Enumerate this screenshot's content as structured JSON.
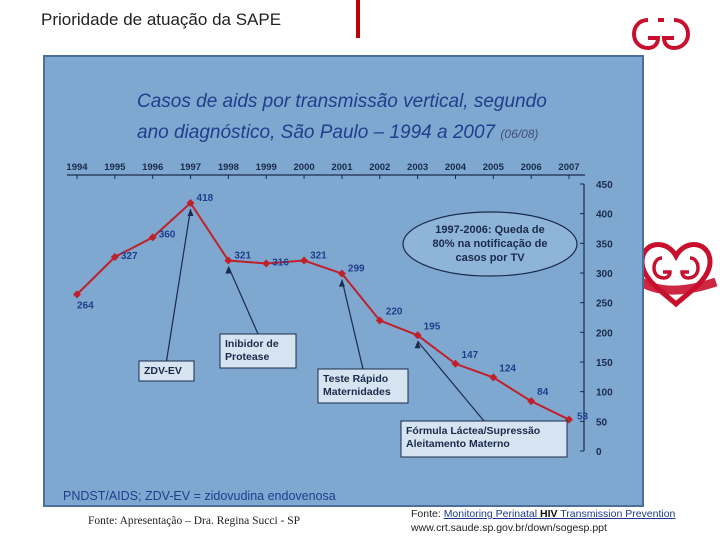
{
  "slide_title": "Prioridade de atuação da SAPE",
  "chart_data": {
    "type": "line",
    "title_line1": "Casos de aids por transmissão vertical, segundo",
    "title_line2": "ano diagnóstico, São Paulo – 1994 a 2007",
    "title_note": "(06/08)",
    "x": [
      "1994",
      "1995",
      "1996",
      "1997",
      "1998",
      "1999",
      "2000",
      "2001",
      "2002",
      "2003",
      "2004",
      "2005",
      "2006",
      "2007"
    ],
    "values": [
      264,
      327,
      360,
      418,
      321,
      316,
      321,
      299,
      220,
      195,
      147,
      124,
      84,
      53
    ],
    "value_labels": [
      "264",
      "327",
      "360",
      "418",
      "321",
      "316",
      "321",
      "299",
      "220",
      "195",
      "147",
      "124",
      "84",
      "53"
    ],
    "ylim": [
      0,
      450
    ],
    "yticks": [
      0,
      50,
      100,
      150,
      200,
      250,
      300,
      350,
      400,
      450
    ],
    "ytick_labels": [
      "0",
      "50",
      "100",
      "150",
      "200",
      "250",
      "300",
      "350",
      "400",
      "450"
    ],
    "y_axis_side": "right",
    "x_axis_side": "top",
    "line_color": "#c0202a",
    "annotations": [
      {
        "text_lines": [
          "ZDV-EV"
        ],
        "points_to": "1997"
      },
      {
        "text_lines": [
          "Inibidor de",
          "Protease"
        ],
        "points_to": "1998"
      },
      {
        "text_lines": [
          "Teste Rápido",
          "Maternidades"
        ],
        "points_to": "2001"
      },
      {
        "text_lines": [
          "Fórmula Láctea/Supressão",
          "Aleitamento Materno"
        ],
        "points_to": "2003"
      }
    ],
    "callout_lines": [
      "1997-2006: Queda de",
      "80% na notificação de",
      "casos por TV"
    ],
    "footnote": "PNDST/AIDS; ZDV-EV = zidovudina endovenosa"
  },
  "source_left": "Fonte: Apresentação – Dra. Regina Succi - SP",
  "source_right_prefix": "Fonte: ",
  "source_right_link_a": "Monitoring Perinatal ",
  "source_right_link_b": "HIV",
  "source_right_link_c": " Transmission Prevention",
  "source_right_line2": "www.crt.saude.sp.gov.br/down/sogesp.ppt"
}
